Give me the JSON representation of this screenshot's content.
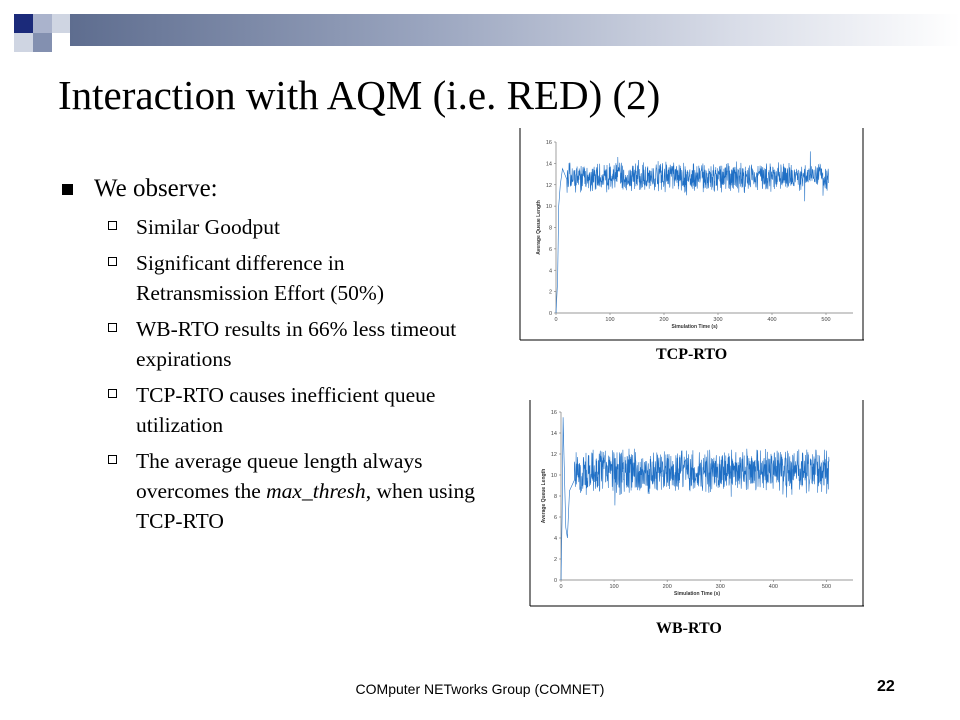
{
  "slide": {
    "title": "Interaction with AQM (i.e. RED) (2)",
    "bullet": "We observe:",
    "sub_items": [
      {
        "parts": [
          {
            "text": "Similar Goodput",
            "italic": false
          }
        ]
      },
      {
        "parts": [
          {
            "text": "Significant difference in Retransmission Effort (50%)",
            "italic": false
          }
        ]
      },
      {
        "parts": [
          {
            "text": "WB-RTO results in 66% less timeout expirations",
            "italic": false
          }
        ]
      },
      {
        "parts": [
          {
            "text": "TCP-RTO causes inefficient queue utilization",
            "italic": false
          }
        ]
      },
      {
        "parts": [
          {
            "text": "The average queue length always overcomes the ",
            "italic": false
          },
          {
            "text": "max_thresh",
            "italic": true
          },
          {
            "text": ", when using TCP-RTO",
            "italic": false
          }
        ]
      }
    ],
    "footer": "COMputer NETworks Group (COMNET)",
    "page_number": "22",
    "colors": {
      "series": "#1f6fc5",
      "header_dark": "#1b2a7a",
      "header_mid": "#5e6d8f"
    }
  },
  "chart_data": [
    {
      "type": "line",
      "caption": "TCP-RTO",
      "xlabel": "Simulation Time (s)",
      "ylabel": "Average Queue Length",
      "xlim": [
        0,
        550
      ],
      "ylim": [
        0,
        16
      ],
      "xticks": [
        0,
        100,
        200,
        300,
        400,
        500
      ],
      "yticks": [
        0,
        2,
        4,
        6,
        8,
        10,
        12,
        14,
        16
      ],
      "grid": false,
      "series": [
        {
          "start": [
            [
              0,
              0
            ],
            [
              3,
              3
            ],
            [
              5,
              10
            ],
            [
              8,
              12
            ],
            [
              12,
              13.5
            ],
            [
              20,
              12.5
            ]
          ],
          "mean": 12.7,
          "spread": 1.1,
          "x_end": 505
        }
      ]
    },
    {
      "type": "line",
      "caption": "WB-RTO",
      "xlabel": "Simulation Time (s)",
      "ylabel": "Average Queue Length",
      "xlim": [
        0,
        550
      ],
      "ylim": [
        0,
        16
      ],
      "xticks": [
        0,
        100,
        200,
        300,
        400,
        500
      ],
      "yticks": [
        0,
        2,
        4,
        6,
        8,
        10,
        12,
        14,
        16
      ],
      "grid": false,
      "series": [
        {
          "start": [
            [
              0,
              0
            ],
            [
              2,
              6
            ],
            [
              4,
              15.5
            ],
            [
              6,
              11
            ],
            [
              9,
              5
            ],
            [
              12,
              4
            ],
            [
              16,
              8.5
            ],
            [
              25,
              9.5
            ]
          ],
          "mean": 10.3,
          "spread": 1.7,
          "x_end": 505
        }
      ]
    }
  ]
}
